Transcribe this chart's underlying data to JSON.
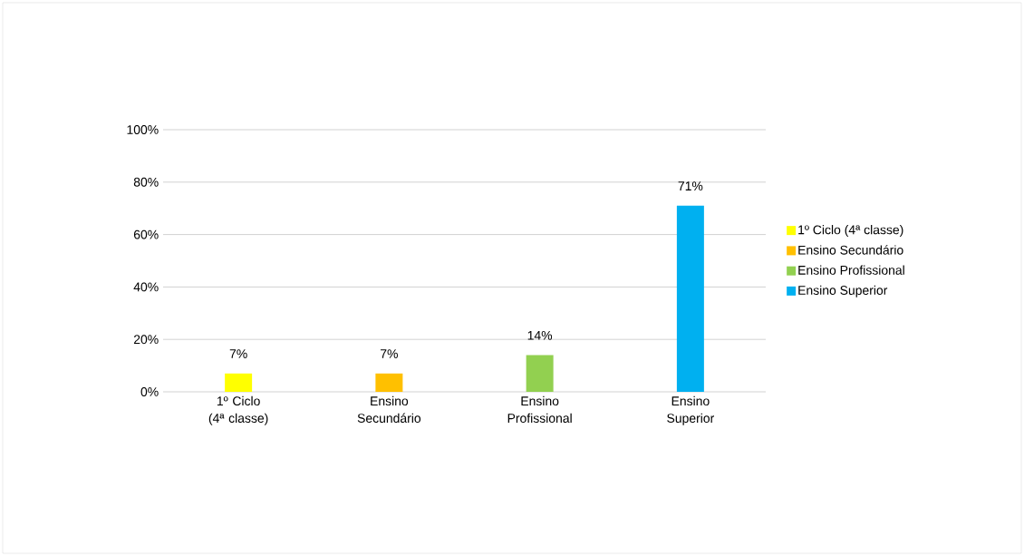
{
  "chart_data": {
    "type": "bar",
    "categories": [
      "1º Ciclo (4ª classe)",
      "Ensino Secundário",
      "Ensino Profissional",
      "Ensino Superior"
    ],
    "series": [
      {
        "name": "1º Ciclo (4ª classe)",
        "color": "#ffff00",
        "values": [
          7,
          null,
          null,
          null
        ],
        "value_labels": [
          "7%",
          null,
          null,
          null
        ]
      },
      {
        "name": "Ensino Secundário",
        "color": "#ffc000",
        "values": [
          null,
          7,
          null,
          null
        ],
        "value_labels": [
          null,
          "7%",
          null,
          null
        ]
      },
      {
        "name": "Ensino Profissional",
        "color": "#92d050",
        "values": [
          null,
          null,
          14,
          null
        ],
        "value_labels": [
          null,
          null,
          "14%",
          null
        ]
      },
      {
        "name": "Ensino Superior",
        "color": "#00b0f0",
        "values": [
          null,
          null,
          null,
          71
        ],
        "value_labels": [
          null,
          null,
          null,
          "71%"
        ]
      }
    ],
    "ylim": [
      0,
      100
    ],
    "yticks": [
      {
        "value": 0,
        "label": "0%"
      },
      {
        "value": 20,
        "label": "20%"
      },
      {
        "value": 40,
        "label": "40%"
      },
      {
        "value": 60,
        "label": "60%"
      },
      {
        "value": 80,
        "label": "80%"
      },
      {
        "value": 100,
        "label": "100%"
      }
    ],
    "grid": "y",
    "legend": "right"
  }
}
